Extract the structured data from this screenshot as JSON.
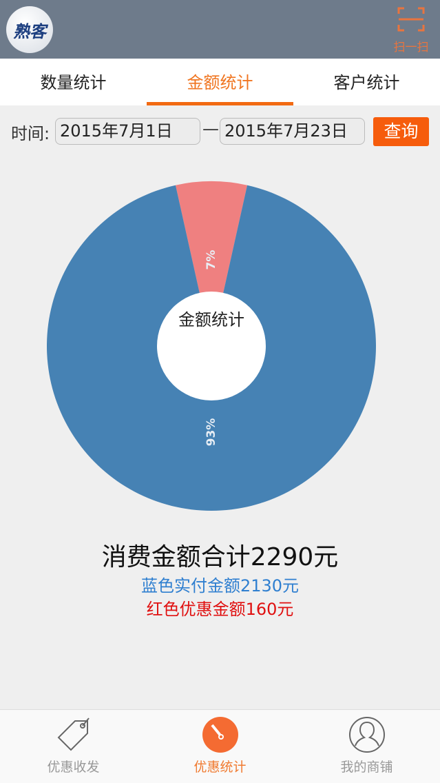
{
  "header": {
    "logo_text": "熟客",
    "scan_label": "扫一扫"
  },
  "tabs": [
    {
      "label": "数量统计"
    },
    {
      "label": "金额统计",
      "active": true
    },
    {
      "label": "客户统计"
    }
  ],
  "date_filter": {
    "label": "时间:",
    "start": "2015年7月1日",
    "separator": "—",
    "end": "2015年7月23日",
    "query_label": "查询"
  },
  "chart_data": {
    "type": "pie",
    "donut": true,
    "center_label": "金额统计",
    "slices": [
      {
        "label": "7%",
        "value": 160,
        "color": "#ef8080"
      },
      {
        "label": "93%",
        "value": 2130,
        "color": "#4682b4"
      }
    ]
  },
  "summary": {
    "total": "消费金额合计2290元",
    "blue": "蓝色实付金额2130元",
    "red": "红色优惠金额160元"
  },
  "nav": [
    {
      "label": "优惠收发",
      "icon": "tag-icon"
    },
    {
      "label": "优惠统计",
      "icon": "gauge-icon",
      "active": true
    },
    {
      "label": "我的商铺",
      "icon": "user-icon"
    }
  ]
}
